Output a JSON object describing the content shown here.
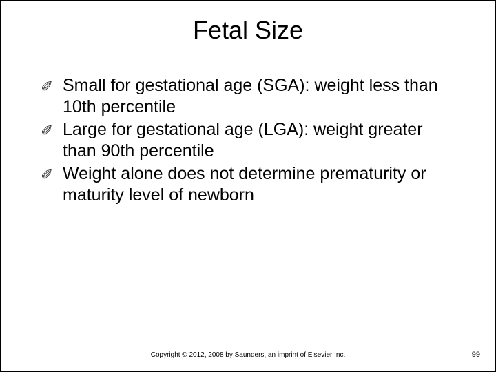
{
  "slide": {
    "title": "Fetal Size",
    "title_fontsize": 36,
    "title_color": "#000000",
    "background_color": "#ffffff",
    "bullet_glyph": "✐",
    "bullets": [
      "Small for gestational age (SGA): weight less than 10th percentile",
      "Large for gestational age (LGA): weight greater than 90th percentile",
      "Weight alone does not determine prematurity or maturity level of newborn"
    ],
    "body_fontsize": 25,
    "body_color": "#000000",
    "footer_copyright": "Copyright © 2012, 2008 by Saunders, an imprint of Elsevier Inc.",
    "footer_fontsize": 10,
    "page_number": "99"
  }
}
